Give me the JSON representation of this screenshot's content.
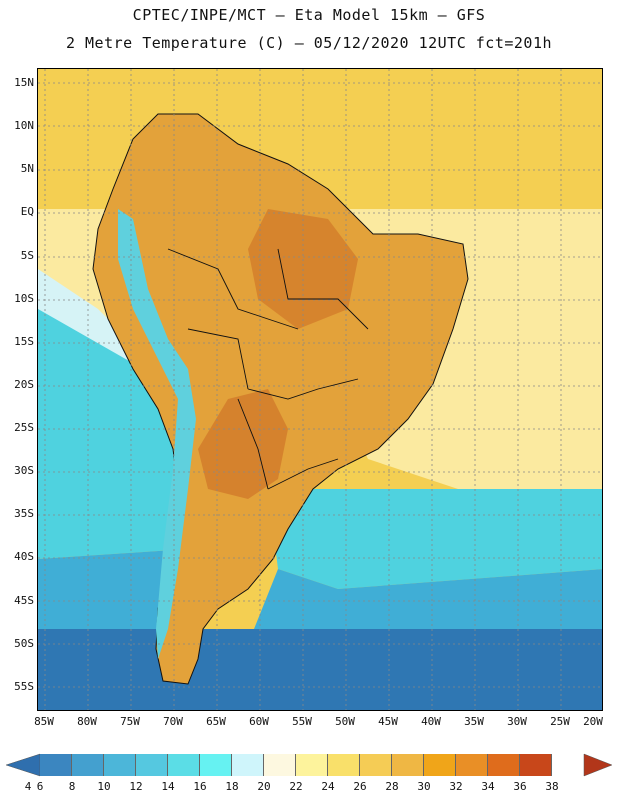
{
  "header": {
    "line1": "CPTEC/INPE/MCT –  Eta Model 15km – GFS",
    "line2": "2 Metre Temperature (C) – 05/12/2020 12UTC fct=201h"
  },
  "map": {
    "lat_labels": [
      "15N",
      "10N",
      "5N",
      "EQ",
      "5S",
      "10S",
      "15S",
      "20S",
      "25S",
      "30S",
      "35S",
      "40S",
      "45S",
      "50S",
      "55S"
    ],
    "lon_labels": [
      "85W",
      "80W",
      "75W",
      "70W",
      "65W",
      "60W",
      "55W",
      "50W",
      "45W",
      "40W",
      "35W",
      "30W",
      "25W",
      "20W"
    ],
    "colors": {
      "ocean_warm": "#f4cf52",
      "ocean_mid": "#fbeaa0",
      "ocean_cool": "#d6f3f6",
      "ocean_cold": "#4fd2df",
      "ocean_colder": "#40aed6",
      "ocean_coldest": "#2f77b3",
      "land_hot": "#e3a23a",
      "land_veryhot": "#d17a2a",
      "land_warm": "#eeb94c",
      "mountain": "#5fd0dd"
    }
  },
  "legend": {
    "labels": [
      "4",
      "6",
      "8",
      "10",
      "12",
      "14",
      "16",
      "18",
      "20",
      "22",
      "24",
      "26",
      "28",
      "30",
      "32",
      "34",
      "36",
      "38"
    ],
    "colors": [
      "#2f6fae",
      "#3b86c0",
      "#44a0cf",
      "#4cb6d9",
      "#55c8e0",
      "#5bdde6",
      "#66f2f2",
      "#cff5fb",
      "#fdf8e0",
      "#fdf39c",
      "#f9e06a",
      "#f5cc55",
      "#efb744",
      "#f0a519",
      "#e98f26",
      "#df6c1c",
      "#c8471a",
      "#b2361a"
    ]
  }
}
